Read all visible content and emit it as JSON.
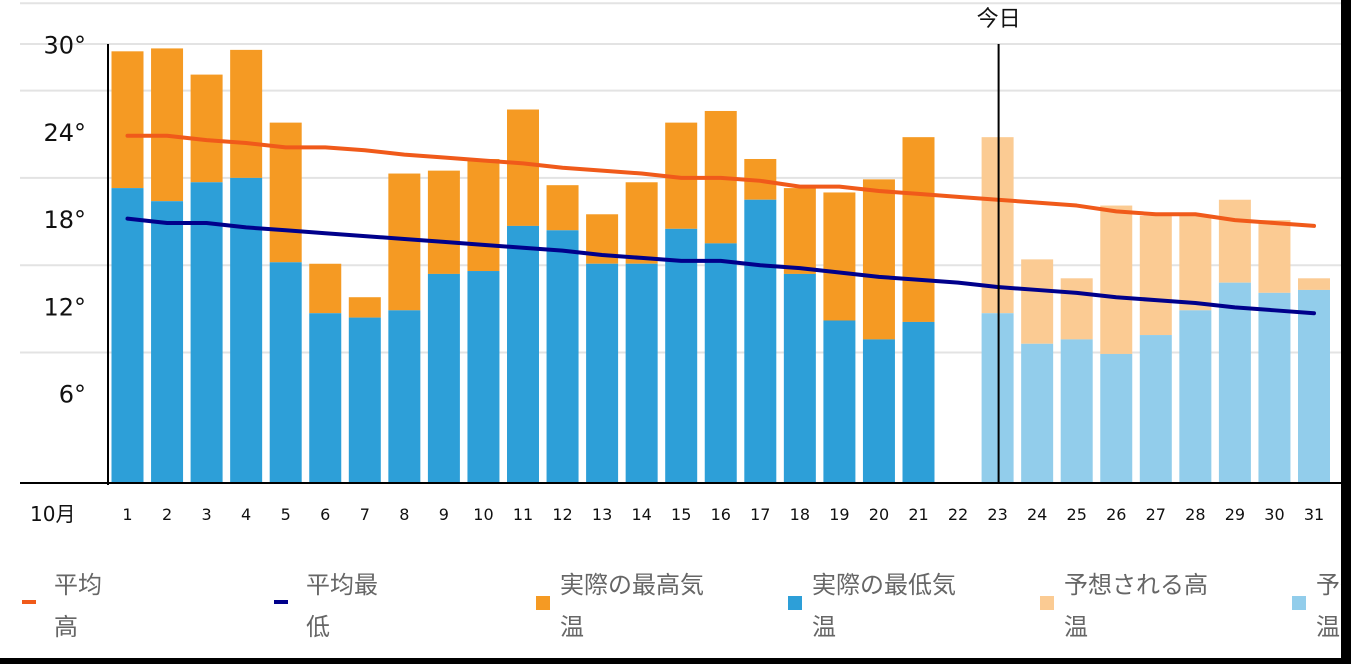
{
  "chart_data": {
    "type": "bar",
    "month_label": "10月",
    "today_label": "今日",
    "today_day": 23,
    "categories": [
      "1",
      "2",
      "3",
      "4",
      "5",
      "6",
      "7",
      "8",
      "9",
      "10",
      "11",
      "12",
      "13",
      "14",
      "15",
      "16",
      "17",
      "18",
      "19",
      "20",
      "21",
      "22",
      "23",
      "24",
      "25",
      "26",
      "27",
      "28",
      "29",
      "30",
      "31"
    ],
    "ylim": [
      0,
      32
    ],
    "yticks": [
      {
        "value": 6,
        "label": "6°"
      },
      {
        "value": 12,
        "label": "12°"
      },
      {
        "value": 18,
        "label": "18°"
      },
      {
        "value": 24,
        "label": "24°"
      },
      {
        "value": 30,
        "label": "30°"
      }
    ],
    "grid": true,
    "series": [
      {
        "name": "実際の最高気温",
        "kind": "bar",
        "color": "#f59a23",
        "values": [
          29.6,
          29.8,
          28.0,
          29.7,
          24.7,
          15.0,
          12.7,
          21.2,
          21.4,
          22.2,
          25.6,
          20.4,
          18.4,
          20.6,
          24.7,
          25.5,
          22.2,
          20.2,
          19.9,
          20.8,
          23.7,
          null,
          null,
          null,
          null,
          null,
          null,
          null,
          null,
          null,
          null
        ]
      },
      {
        "name": "実際の最低気温",
        "kind": "bar",
        "color": "#2d9fd8",
        "values": [
          20.2,
          19.3,
          20.6,
          20.9,
          15.1,
          11.6,
          11.3,
          11.8,
          14.3,
          14.5,
          17.6,
          17.3,
          15.0,
          15.0,
          17.4,
          16.4,
          19.4,
          14.3,
          11.1,
          9.8,
          11.0,
          null,
          null,
          null,
          null,
          null,
          null,
          null,
          null,
          null,
          null
        ]
      },
      {
        "name": "予想される高温",
        "kind": "bar",
        "color": "#fbcb93",
        "values": [
          null,
          null,
          null,
          null,
          null,
          null,
          null,
          null,
          null,
          null,
          null,
          null,
          null,
          null,
          null,
          null,
          null,
          null,
          null,
          null,
          null,
          null,
          23.7,
          15.3,
          14.0,
          19.0,
          18.3,
          18.3,
          19.4,
          18.0,
          14.0
        ]
      },
      {
        "name": "予想される低温",
        "kind": "bar",
        "color": "#92cdeb",
        "values": [
          null,
          null,
          null,
          null,
          null,
          null,
          null,
          null,
          null,
          null,
          null,
          null,
          null,
          null,
          null,
          null,
          null,
          null,
          null,
          null,
          null,
          null,
          11.6,
          9.5,
          9.8,
          8.8,
          10.1,
          11.8,
          13.7,
          13.0,
          13.2
        ]
      },
      {
        "name": "平均高",
        "kind": "line",
        "color": "#f05a1a",
        "values": [
          23.8,
          23.8,
          23.5,
          23.3,
          23.0,
          23.0,
          22.8,
          22.5,
          22.3,
          22.1,
          21.9,
          21.6,
          21.4,
          21.2,
          20.9,
          20.9,
          20.7,
          20.3,
          20.3,
          20.0,
          19.8,
          19.6,
          19.4,
          19.2,
          19.0,
          18.6,
          18.4,
          18.4,
          18.0,
          17.8,
          17.6
        ]
      },
      {
        "name": "平均最低",
        "kind": "line",
        "color": "#00008b",
        "values": [
          18.1,
          17.8,
          17.8,
          17.5,
          17.3,
          17.1,
          16.9,
          16.7,
          16.5,
          16.3,
          16.1,
          15.9,
          15.6,
          15.4,
          15.2,
          15.2,
          14.9,
          14.7,
          14.4,
          14.1,
          13.9,
          13.7,
          13.4,
          13.2,
          13.0,
          12.7,
          12.5,
          12.3,
          12.0,
          11.8,
          11.6
        ]
      }
    ]
  },
  "legend": [
    {
      "line1": "平均",
      "line2": "高",
      "color": "#f05a1a",
      "shape": "line"
    },
    {
      "line1": "平均最",
      "line2": "低",
      "color": "#00008b",
      "shape": "line"
    },
    {
      "line1": "実際の最高気",
      "line2": "温",
      "color": "#f59a23",
      "shape": "square"
    },
    {
      "line1": "実際の最低気",
      "line2": "温",
      "color": "#2d9fd8",
      "shape": "square"
    },
    {
      "line1": "予想される高",
      "line2": "温",
      "color": "#fbcb93",
      "shape": "square"
    },
    {
      "line1": "予想される低",
      "line2": "温",
      "color": "#92cdeb",
      "shape": "square"
    }
  ]
}
